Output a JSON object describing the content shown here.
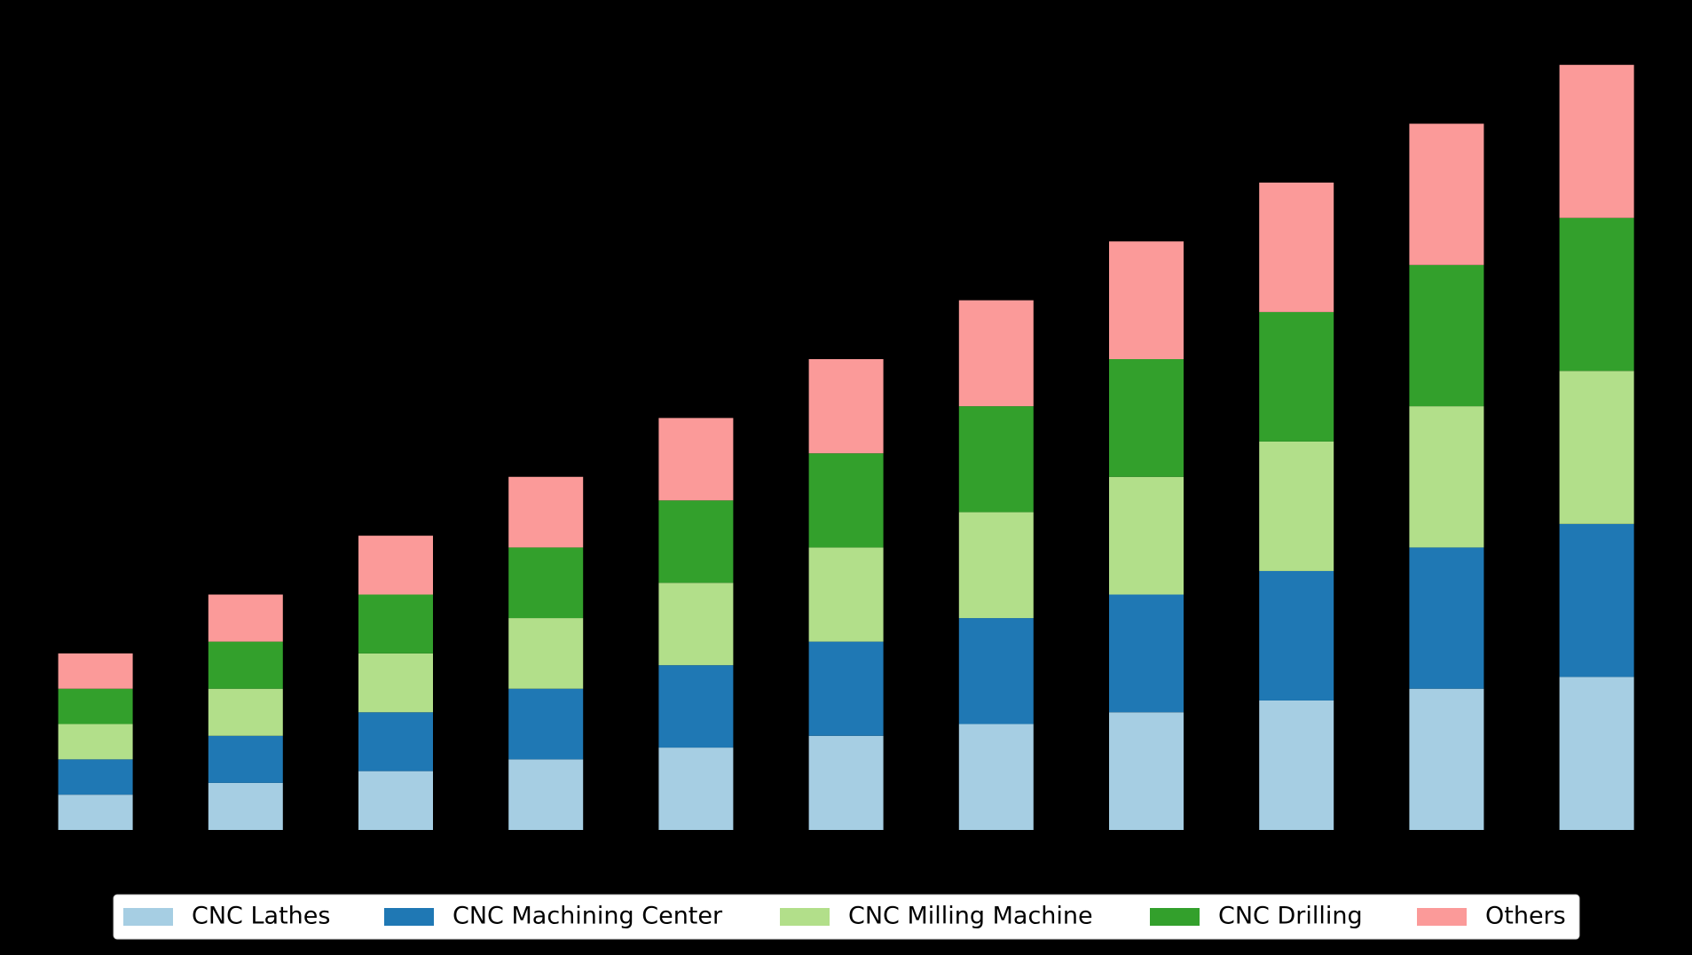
{
  "chart_data": {
    "type": "bar",
    "stacked": true,
    "categories": [
      null,
      null,
      null,
      null,
      null,
      null,
      null,
      null,
      null,
      null,
      null
    ],
    "series": [
      {
        "name": "CNC Lathes",
        "color": "#a6cee3",
        "values": [
          3,
          4,
          5,
          6,
          7,
          8,
          9,
          10,
          11,
          12,
          13
        ]
      },
      {
        "name": "CNC Machining Center",
        "color": "#1f78b4",
        "values": [
          3,
          4,
          5,
          6,
          7,
          8,
          9,
          10,
          11,
          12,
          13
        ]
      },
      {
        "name": "CNC Milling Machine",
        "color": "#b2df8a",
        "values": [
          3,
          4,
          5,
          6,
          7,
          8,
          9,
          10,
          11,
          12,
          13
        ]
      },
      {
        "name": "CNC Drilling",
        "color": "#33a02c",
        "values": [
          3,
          4,
          5,
          6,
          7,
          8,
          9,
          10,
          11,
          12,
          13
        ]
      },
      {
        "name": "Others",
        "color": "#fb9a99",
        "values": [
          3,
          4,
          5,
          6,
          7,
          8,
          9,
          10,
          11,
          12,
          13
        ]
      }
    ],
    "ylim": [
      0,
      68.25
    ],
    "legend": "lower center"
  }
}
